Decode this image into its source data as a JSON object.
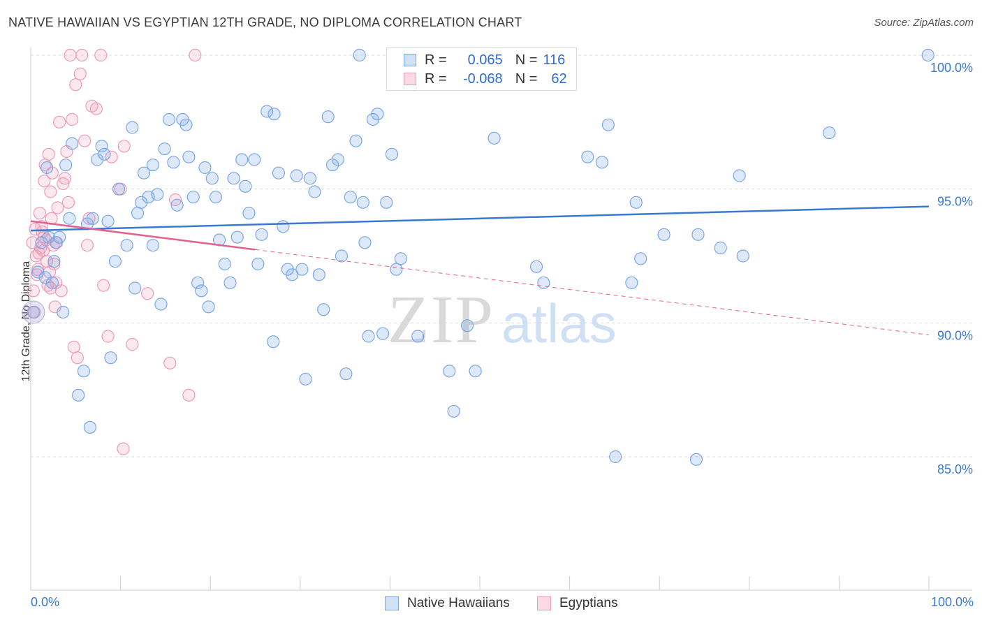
{
  "title": "NATIVE HAWAIIAN VS EGYPTIAN 12TH GRADE, NO DIPLOMA CORRELATION CHART",
  "source": "Source: ZipAtlas.com",
  "watermark": {
    "zip": "ZIP",
    "atlas": "atlas"
  },
  "legend_top": {
    "rows": [
      {
        "r_label": "R =",
        "r_value": "0.065",
        "n_label": "N =",
        "n_value": "116"
      },
      {
        "r_label": "R =",
        "r_value": "-0.068",
        "n_label": "N =",
        "n_value": "62"
      }
    ]
  },
  "colors": {
    "blue": "#3b78d0",
    "blue_fill": "rgba(120,166,232,0.25)",
    "blue_stroke": "#7aa6e8",
    "pink": "#e4608f",
    "pink_fill": "rgba(240,150,180,0.22)",
    "pink_stroke": "#ee9ab8",
    "grid": "#dcdcdc",
    "axis_text": "#3b78d0"
  },
  "chart_data": {
    "type": "scatter",
    "title": "NATIVE HAWAIIAN VS EGYPTIAN 12TH GRADE, NO DIPLOMA CORRELATION CHART",
    "xlabel": "",
    "ylabel": "12th Grade, No Diploma",
    "xlim": [
      0,
      100
    ],
    "ylim": [
      80.5,
      100.5
    ],
    "x_tick_labels": [
      "0.0%",
      "100.0%"
    ],
    "y_ticks": [
      85,
      90,
      95,
      100
    ],
    "y_tick_labels": [
      "85.0%",
      "90.0%",
      "95.0%",
      "100.0%"
    ],
    "grid": true,
    "legend_position": "bottom-center",
    "series": [
      {
        "name": "Native Hawaiians",
        "color": "#7aa6e8",
        "R": 0.065,
        "N": 116,
        "trend": {
          "x": [
            0,
            100
          ],
          "y": [
            93.45,
            94.35
          ],
          "style": "solid"
        },
        "points": [
          [
            0.3,
            90.4
          ],
          [
            0.8,
            91.9
          ],
          [
            1.2,
            93.0
          ],
          [
            1.6,
            91.7
          ],
          [
            1.8,
            95.8
          ],
          [
            2.0,
            93.2
          ],
          [
            2.4,
            91.5
          ],
          [
            2.6,
            92.3
          ],
          [
            2.8,
            93.0
          ],
          [
            3.2,
            93.2
          ],
          [
            3.6,
            90.4
          ],
          [
            3.9,
            95.9
          ],
          [
            4.3,
            93.9
          ],
          [
            4.6,
            96.7
          ],
          [
            5.3,
            87.3
          ],
          [
            5.9,
            88.2
          ],
          [
            6.3,
            93.7
          ],
          [
            6.6,
            86.1
          ],
          [
            6.9,
            93.9
          ],
          [
            7.4,
            96.1
          ],
          [
            7.9,
            96.6
          ],
          [
            8.2,
            96.3
          ],
          [
            8.6,
            93.8
          ],
          [
            8.9,
            88.7
          ],
          [
            9.4,
            92.3
          ],
          [
            9.8,
            95.0
          ],
          [
            10.7,
            92.9
          ],
          [
            11.3,
            97.3
          ],
          [
            11.6,
            91.3
          ],
          [
            11.9,
            94.1
          ],
          [
            12.3,
            94.5
          ],
          [
            12.6,
            95.6
          ],
          [
            13.1,
            94.7
          ],
          [
            13.6,
            95.9
          ],
          [
            14.1,
            94.8
          ],
          [
            14.5,
            90.7
          ],
          [
            14.9,
            96.5
          ],
          [
            15.4,
            97.6
          ],
          [
            15.9,
            96.0
          ],
          [
            16.3,
            94.4
          ],
          [
            16.9,
            97.6
          ],
          [
            17.3,
            97.4
          ],
          [
            17.6,
            96.2
          ],
          [
            18.1,
            94.7
          ],
          [
            18.6,
            91.5
          ],
          [
            19.0,
            91.2
          ],
          [
            19.4,
            95.8
          ],
          [
            19.8,
            90.6
          ],
          [
            20.2,
            95.4
          ],
          [
            20.6,
            94.7
          ],
          [
            21.0,
            93.1
          ],
          [
            21.6,
            92.2
          ],
          [
            22.2,
            91.5
          ],
          [
            22.6,
            95.4
          ],
          [
            23.0,
            93.2
          ],
          [
            23.5,
            96.1
          ],
          [
            23.9,
            95.1
          ],
          [
            24.3,
            94.1
          ],
          [
            24.9,
            96.1
          ],
          [
            25.3,
            92.2
          ],
          [
            25.7,
            93.3
          ],
          [
            26.3,
            97.9
          ],
          [
            27.1,
            97.8
          ],
          [
            27.6,
            95.6
          ],
          [
            27.0,
            89.3
          ],
          [
            28.1,
            93.6
          ],
          [
            28.6,
            92.0
          ],
          [
            29.1,
            91.8
          ],
          [
            29.6,
            95.5
          ],
          [
            30.2,
            92.0
          ],
          [
            30.6,
            87.9
          ],
          [
            31.1,
            95.4
          ],
          [
            31.6,
            94.9
          ],
          [
            32.1,
            91.8
          ],
          [
            32.6,
            90.5
          ],
          [
            33.1,
            97.7
          ],
          [
            33.6,
            95.9
          ],
          [
            34.2,
            96.1
          ],
          [
            34.6,
            92.5
          ],
          [
            35.1,
            88.1
          ],
          [
            35.6,
            94.7
          ],
          [
            36.2,
            96.8
          ],
          [
            36.6,
            100.0
          ],
          [
            37.0,
            94.5
          ],
          [
            37.2,
            93.0
          ],
          [
            37.6,
            89.5
          ],
          [
            38.1,
            97.6
          ],
          [
            38.6,
            97.8
          ],
          [
            39.2,
            89.6
          ],
          [
            39.6,
            94.5
          ],
          [
            40.2,
            96.3
          ],
          [
            40.7,
            92.0
          ],
          [
            41.2,
            92.4
          ],
          [
            42.7,
            98.9
          ],
          [
            43.1,
            89.5
          ],
          [
            46.6,
            88.2
          ],
          [
            47.1,
            86.7
          ],
          [
            48.6,
            89.9
          ],
          [
            49.5,
            88.2
          ],
          [
            51.6,
            96.9
          ],
          [
            56.3,
            92.1
          ],
          [
            57.1,
            91.5
          ],
          [
            59.1,
            100.0
          ],
          [
            59.6,
            100.0
          ],
          [
            62.0,
            96.2
          ],
          [
            63.6,
            96.0
          ],
          [
            64.3,
            97.4
          ],
          [
            65.1,
            85.0
          ],
          [
            66.9,
            91.5
          ],
          [
            67.4,
            94.5
          ],
          [
            67.9,
            92.4
          ],
          [
            70.5,
            93.3
          ],
          [
            74.1,
            84.9
          ],
          [
            74.3,
            93.3
          ],
          [
            76.8,
            92.8
          ],
          [
            78.9,
            95.5
          ],
          [
            79.3,
            92.5
          ],
          [
            88.9,
            97.1
          ],
          [
            99.9,
            100.0
          ],
          [
            13.6,
            92.9
          ]
        ]
      },
      {
        "name": "Egyptians",
        "color": "#ee9ab8",
        "R": -0.068,
        "N": 62,
        "trend": {
          "x": [
            0,
            100
          ],
          "y": [
            93.8,
            89.55
          ],
          "style": "solid to x=25, dashed after"
        },
        "points": [
          [
            0.2,
            93.0
          ],
          [
            0.3,
            91.2
          ],
          [
            0.4,
            90.4
          ],
          [
            0.5,
            93.5
          ],
          [
            0.6,
            92.5
          ],
          [
            0.7,
            91.8
          ],
          [
            0.9,
            92.6
          ],
          [
            1.0,
            94.1
          ],
          [
            1.1,
            92.8
          ],
          [
            1.2,
            93.6
          ],
          [
            1.3,
            93.4
          ],
          [
            1.4,
            92.7
          ],
          [
            1.5,
            95.3
          ],
          [
            1.6,
            95.9
          ],
          [
            1.7,
            93.1
          ],
          [
            1.8,
            92.3
          ],
          [
            1.9,
            91.4
          ],
          [
            2.0,
            96.3
          ],
          [
            2.1,
            91.9
          ],
          [
            2.2,
            94.9
          ],
          [
            2.3,
            93.9
          ],
          [
            2.4,
            95.6
          ],
          [
            2.5,
            92.9
          ],
          [
            2.6,
            92.2
          ],
          [
            2.7,
            90.6
          ],
          [
            2.8,
            91.5
          ],
          [
            3.0,
            94.3
          ],
          [
            3.2,
            97.5
          ],
          [
            3.4,
            91.2
          ],
          [
            3.6,
            95.2
          ],
          [
            3.8,
            95.4
          ],
          [
            4.0,
            96.4
          ],
          [
            4.2,
            94.5
          ],
          [
            4.4,
            100.0
          ],
          [
            4.6,
            97.6
          ],
          [
            4.8,
            89.1
          ],
          [
            5.0,
            98.9
          ],
          [
            5.2,
            88.7
          ],
          [
            5.5,
            99.3
          ],
          [
            5.7,
            100.0
          ],
          [
            6.0,
            96.8
          ],
          [
            6.3,
            92.9
          ],
          [
            6.5,
            93.9
          ],
          [
            6.8,
            98.1
          ],
          [
            7.3,
            98.0
          ],
          [
            8.1,
            91.4
          ],
          [
            8.6,
            89.5
          ],
          [
            9.0,
            96.2
          ],
          [
            10.0,
            95.0
          ],
          [
            10.4,
            96.6
          ],
          [
            11.3,
            89.2
          ],
          [
            13.0,
            91.1
          ],
          [
            15.5,
            88.5
          ],
          [
            16.1,
            94.6
          ],
          [
            17.6,
            87.3
          ],
          [
            10.3,
            85.3
          ],
          [
            7.8,
            100.0
          ],
          [
            18.3,
            100.0
          ],
          [
            2.2,
            91.3
          ],
          [
            1.5,
            93.2
          ],
          [
            0.8,
            92.0
          ],
          [
            2.9,
            93.0
          ]
        ]
      }
    ]
  },
  "x_axis": {
    "left_label": "0.0%",
    "right_label": "100.0%"
  },
  "legend_bottom": {
    "items": [
      "Native Hawaiians",
      "Egyptians"
    ]
  }
}
